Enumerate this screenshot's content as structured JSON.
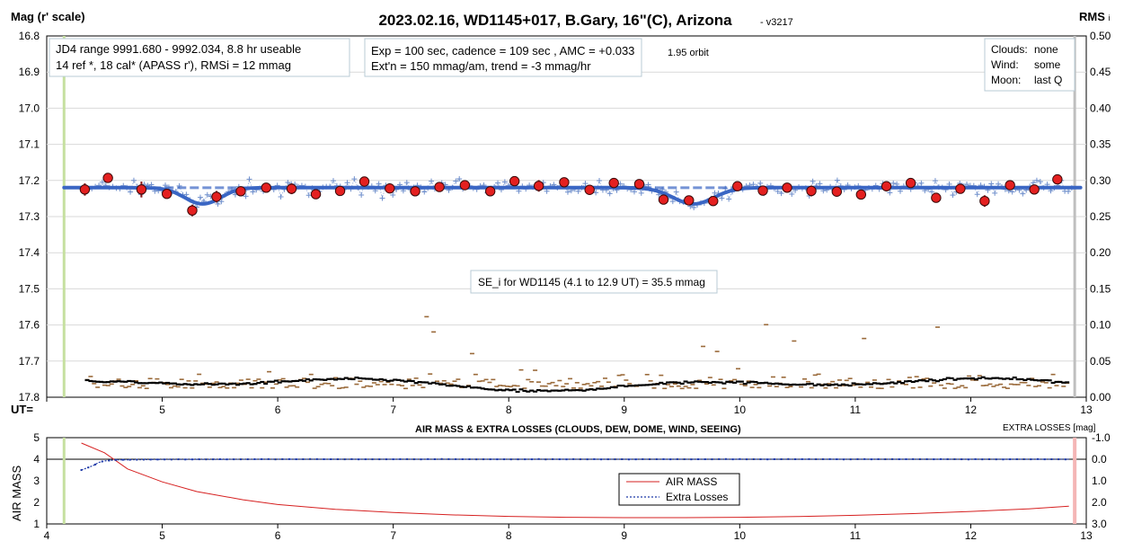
{
  "chart_data": [
    {
      "type": "scatter",
      "title": "2023.02.16, WD1145+017, B.Gary, 16\"(C), Arizona",
      "version": "- v3217",
      "ylabel_left": "Mag (r' scale)",
      "ylabel_right": "RMS",
      "ylabel_right_suffix": "i",
      "x_axis_label": "UT=",
      "xlim": [
        4,
        13
      ],
      "ylim_left": [
        17.8,
        16.8
      ],
      "ylim_right": [
        0.0,
        0.5
      ],
      "x_ticks": [
        "5",
        "6",
        "7",
        "8",
        "9",
        "10",
        "11",
        "12",
        "13"
      ],
      "y_ticks_left": [
        "16.8",
        "16.9",
        "17.0",
        "17.1",
        "17.2",
        "17.3",
        "17.4",
        "17.5",
        "17.6",
        "17.7",
        "17.8"
      ],
      "y_ticks_right": [
        "0.50",
        "0.45",
        "0.40",
        "0.35",
        "0.30",
        "0.25",
        "0.20",
        "0.15",
        "0.10",
        "0.05",
        "0.00"
      ],
      "annotations": {
        "info_box_1": [
          "JD4 range 9991.680 - 9992.034, 8.8 hr useable",
          "14 ref *, 18 cal*  (APASS r'), RMSi = 12 mmag"
        ],
        "info_box_2": [
          "Exp = 100 sec, cadence = 109 sec , AMC = +0.033",
          "Ext'n = 150 mmag/am, trend = -3 mmag/hr"
        ],
        "orbit_label": "1.95 orbit",
        "conditions": [
          {
            "label": "Clouds:",
            "value": "none"
          },
          {
            "label": "Wind:",
            "value": "some"
          },
          {
            "label": "Moon:",
            "value": "last Q"
          }
        ],
        "se_box": "SE_i for WD1145 (4.1 to 12.9 UT) = 35.5 mmag"
      },
      "vertical_markers": {
        "start_ut": 4.15,
        "end_ut": 12.9,
        "start_color": "#c6e0a0",
        "end_color": "#bfbfbf"
      },
      "model_baseline": 17.22,
      "model_dips": [
        {
          "center": 5.35,
          "depth": 0.045,
          "width": 0.22
        },
        {
          "center": 9.6,
          "depth": 0.045,
          "width": 0.25
        }
      ],
      "binned_points": [
        {
          "x": 4.33,
          "y": 17.225,
          "err": 0.017
        },
        {
          "x": 4.53,
          "y": 17.193,
          "err": 0.012
        },
        {
          "x": 4.82,
          "y": 17.225,
          "err": 0.022
        },
        {
          "x": 5.04,
          "y": 17.237,
          "err": 0.01
        },
        {
          "x": 5.26,
          "y": 17.283,
          "err": 0.016
        },
        {
          "x": 5.47,
          "y": 17.245,
          "err": 0.016
        },
        {
          "x": 5.68,
          "y": 17.23,
          "err": 0.012
        },
        {
          "x": 5.9,
          "y": 17.22,
          "err": 0.008
        },
        {
          "x": 6.12,
          "y": 17.223,
          "err": 0.015
        },
        {
          "x": 6.33,
          "y": 17.238,
          "err": 0.009
        },
        {
          "x": 6.54,
          "y": 17.229,
          "err": 0.01
        },
        {
          "x": 6.75,
          "y": 17.203,
          "err": 0.011
        },
        {
          "x": 6.97,
          "y": 17.222,
          "err": 0.009
        },
        {
          "x": 7.19,
          "y": 17.23,
          "err": 0.009
        },
        {
          "x": 7.4,
          "y": 17.218,
          "err": 0.008
        },
        {
          "x": 7.62,
          "y": 17.213,
          "err": 0.008
        },
        {
          "x": 7.84,
          "y": 17.23,
          "err": 0.01
        },
        {
          "x": 8.05,
          "y": 17.202,
          "err": 0.008
        },
        {
          "x": 8.26,
          "y": 17.215,
          "err": 0.016
        },
        {
          "x": 8.48,
          "y": 17.205,
          "err": 0.011
        },
        {
          "x": 8.7,
          "y": 17.226,
          "err": 0.008
        },
        {
          "x": 8.91,
          "y": 17.207,
          "err": 0.013
        },
        {
          "x": 9.13,
          "y": 17.21,
          "err": 0.01
        },
        {
          "x": 9.34,
          "y": 17.253,
          "err": 0.012
        },
        {
          "x": 9.56,
          "y": 17.255,
          "err": 0.008
        },
        {
          "x": 9.77,
          "y": 17.257,
          "err": 0.013
        },
        {
          "x": 9.98,
          "y": 17.216,
          "err": 0.012
        },
        {
          "x": 10.2,
          "y": 17.228,
          "err": 0.01
        },
        {
          "x": 10.41,
          "y": 17.22,
          "err": 0.009
        },
        {
          "x": 10.62,
          "y": 17.229,
          "err": 0.015
        },
        {
          "x": 10.84,
          "y": 17.231,
          "err": 0.01
        },
        {
          "x": 11.05,
          "y": 17.239,
          "err": 0.01
        },
        {
          "x": 11.27,
          "y": 17.216,
          "err": 0.008
        },
        {
          "x": 11.48,
          "y": 17.207,
          "err": 0.009
        },
        {
          "x": 11.7,
          "y": 17.248,
          "err": 0.009
        },
        {
          "x": 11.91,
          "y": 17.223,
          "err": 0.008
        },
        {
          "x": 12.12,
          "y": 17.257,
          "err": 0.016
        },
        {
          "x": 12.34,
          "y": 17.213,
          "err": 0.008
        },
        {
          "x": 12.55,
          "y": 17.225,
          "err": 0.009
        },
        {
          "x": 12.75,
          "y": 17.197,
          "err": 0.01
        }
      ]
    },
    {
      "type": "line",
      "title": "AIR MASS & EXTRA LOSSES (CLOUDS, DEW, DOME, WIND, SEEING)",
      "ylabel_left": "AIR MASS",
      "ylabel_right": "EXTRA LOSSES [mag]",
      "xlim": [
        4,
        13
      ],
      "ylim_left": [
        1,
        5
      ],
      "ylim_right": [
        3.0,
        -1.0
      ],
      "x_ticks": [
        "4",
        "5",
        "6",
        "7",
        "8",
        "9",
        "10",
        "11",
        "12",
        "13"
      ],
      "y_ticks_left": [
        "5",
        "4",
        "3",
        "2",
        "1"
      ],
      "y_ticks_right": [
        "-1.0",
        "0.0",
        "1.0",
        "2.0",
        "3.0"
      ],
      "legend": [
        "AIR MASS",
        "Extra Losses"
      ],
      "series": [
        {
          "name": "AIR MASS",
          "color": "#d62020",
          "x": [
            4.3,
            4.5,
            4.7,
            5.0,
            5.3,
            5.7,
            6.0,
            6.5,
            7.0,
            7.5,
            8.0,
            8.5,
            9.0,
            9.5,
            10.0,
            10.5,
            11.0,
            11.5,
            12.0,
            12.5,
            12.85
          ],
          "y": [
            4.75,
            4.3,
            3.55,
            2.95,
            2.5,
            2.12,
            1.9,
            1.68,
            1.53,
            1.42,
            1.35,
            1.31,
            1.29,
            1.29,
            1.31,
            1.34,
            1.4,
            1.48,
            1.58,
            1.7,
            1.82
          ]
        },
        {
          "name": "Extra Losses",
          "color": "#1f3aa8",
          "x": [
            4.3,
            4.35,
            4.4,
            4.45,
            4.5,
            4.6,
            4.8,
            5.0,
            6.0,
            7.0,
            8.0,
            9.0,
            10.0,
            11.0,
            12.0,
            12.85
          ],
          "y": [
            0.5,
            0.4,
            0.3,
            0.15,
            0.08,
            0.03,
            0.02,
            0.01,
            0.0,
            0.0,
            0.0,
            0.0,
            0.0,
            0.0,
            0.0,
            0.0
          ]
        }
      ],
      "vertical_markers": {
        "start_ut": 4.15,
        "end_ut": 12.9,
        "start_color": "#c6e0a0",
        "end_color": "#f4b6b6"
      }
    }
  ]
}
